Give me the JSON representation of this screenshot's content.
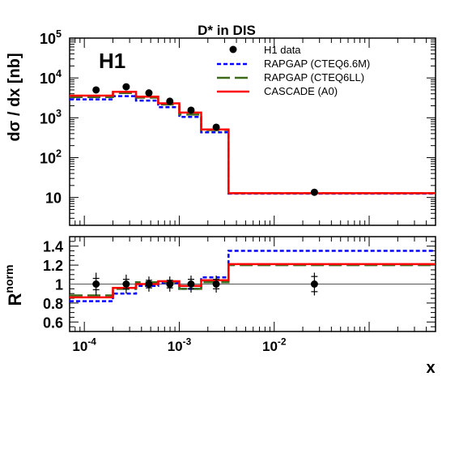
{
  "title": "D* in DIS",
  "experiment_label": "H1",
  "chart_data": [
    {
      "type": "step",
      "panel": "main",
      "ylabel": "dσ / dx [nb]",
      "yscale": "log",
      "xscale": "log",
      "xlim": [
        7e-05,
        0.5
      ],
      "ylim": [
        2,
        100000
      ],
      "y_ticks": [
        {
          "v": 10,
          "label": "10",
          "exp": ""
        },
        {
          "v": 100,
          "label": "10",
          "exp": "2"
        },
        {
          "v": 1000,
          "label": "10",
          "exp": "3"
        },
        {
          "v": 10000,
          "label": "10",
          "exp": "4"
        },
        {
          "v": 100000,
          "label": "10",
          "exp": "5"
        }
      ],
      "bin_edges": [
        7e-05,
        0.0002,
        0.00035,
        0.0006,
        0.001,
        0.0017,
        0.0033,
        0.5
      ],
      "series": [
        {
          "name": "H1 data",
          "style": "points",
          "color": "#000000",
          "x": [
            0.000133,
            0.000276,
            0.000479,
            0.000795,
            0.00133,
            0.00245,
            0.0265
          ],
          "y": [
            5000,
            6000,
            4200,
            2600,
            1550,
            580,
            13.5
          ]
        },
        {
          "name": "RAPGAP (CTEQ6.6M)",
          "style": "dotted",
          "color": "#0000ff",
          "y": [
            2900,
            3500,
            2700,
            1850,
            1050,
            430,
            12.5
          ]
        },
        {
          "name": "RAPGAP (CTEQ6LL)",
          "style": "dashed",
          "color": "#3a6a1a",
          "y": [
            3300,
            4200,
            3200,
            2150,
            1200,
            490,
            12.8
          ]
        },
        {
          "name": "CASCADE (A0)",
          "style": "solid",
          "color": "#ff0000",
          "y": [
            3600,
            4500,
            3400,
            2300,
            1350,
            510,
            12.8
          ]
        }
      ],
      "legend_position": "top-right"
    },
    {
      "type": "step",
      "panel": "ratio",
      "ylabel": "R",
      "ylabel_sup": "norm",
      "xlabel": "x",
      "xscale": "log",
      "xlim": [
        7e-05,
        0.5
      ],
      "ylim": [
        0.5,
        1.5
      ],
      "y_ticks": [
        {
          "v": 0.6,
          "label": "0.6"
        },
        {
          "v": 0.8,
          "label": "0.8"
        },
        {
          "v": 1.0,
          "label": "1"
        },
        {
          "v": 1.2,
          "label": "1.2"
        },
        {
          "v": 1.4,
          "label": "1.4"
        }
      ],
      "x_ticks": [
        {
          "v": 0.0001,
          "label": "10",
          "exp": "-4"
        },
        {
          "v": 0.001,
          "label": "10",
          "exp": "-3"
        },
        {
          "v": 0.01,
          "label": "10",
          "exp": "-2"
        }
      ],
      "reference_line": 1,
      "bin_edges": [
        7e-05,
        0.0002,
        0.00035,
        0.0006,
        0.001,
        0.0017,
        0.0033,
        0.5
      ],
      "data_points": {
        "x": [
          0.000133,
          0.000276,
          0.000479,
          0.000795,
          0.00133,
          0.00245,
          0.0265
        ],
        "y": [
          1.0,
          1.0,
          1.0,
          1.0,
          1.0,
          1.0,
          1.0
        ],
        "err_stat": [
          0.06,
          0.05,
          0.04,
          0.04,
          0.05,
          0.05,
          0.08
        ],
        "err_tot": [
          0.12,
          0.1,
          0.08,
          0.08,
          0.09,
          0.09,
          0.12
        ]
      },
      "series": [
        {
          "name": "RAPGAP (CTEQ6.6M)",
          "style": "dotted",
          "color": "#0000ff",
          "y": [
            0.82,
            0.9,
            0.98,
            1.01,
            0.95,
            1.07,
            1.35
          ]
        },
        {
          "name": "RAPGAP (CTEQ6LL)",
          "style": "dashed",
          "color": "#3a6a1a",
          "y": [
            0.88,
            0.95,
            1.02,
            1.02,
            0.95,
            1.02,
            1.2
          ]
        },
        {
          "name": "CASCADE (A0)",
          "style": "solid",
          "color": "#ff0000",
          "y": [
            0.86,
            0.96,
            1.0,
            1.03,
            0.98,
            1.04,
            1.21
          ]
        }
      ]
    }
  ]
}
